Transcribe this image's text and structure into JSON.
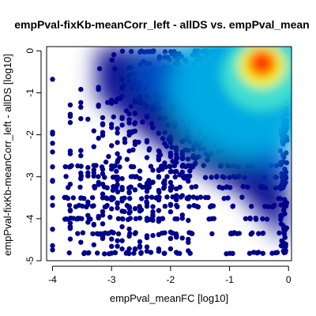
{
  "chart_data": {
    "type": "scatter",
    "title": "empPval-fixKb-meanCorr_left - allDS vs. empPval_mean",
    "xlabel": "empPval_meanFC [log10]",
    "ylabel": "empPval-fixKb-meanCorr_left - allDS [log10]",
    "xlim": [
      -4.1,
      0.05
    ],
    "ylim": [
      -5,
      0.1
    ],
    "x_ticks": [
      -4,
      -3,
      -2,
      -1,
      0
    ],
    "y_ticks": [
      -5,
      -4,
      -3,
      -2,
      -1,
      0
    ],
    "grid": false,
    "legend": "none",
    "point_color": "#00008B",
    "density_colormap": [
      "#00008B",
      "#0050C8",
      "#00B4E6",
      "#40E0D0",
      "#FFFF00",
      "#FF8000",
      "#FF0000"
    ],
    "density_peak": {
      "x": -0.45,
      "y": -0.3
    }
  }
}
